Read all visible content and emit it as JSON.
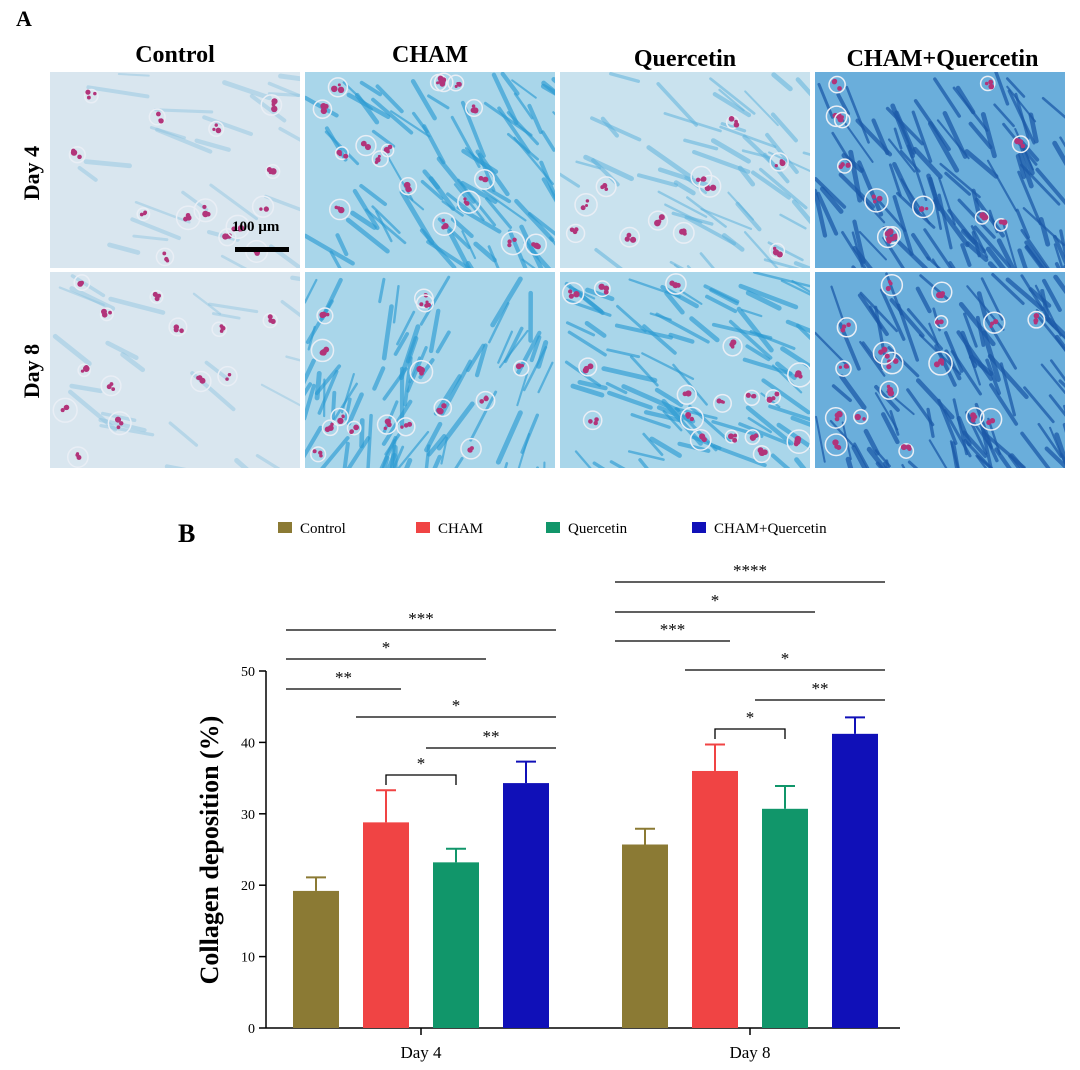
{
  "panel_a": {
    "label": "A",
    "columns": [
      "Control",
      "CHAM",
      "Quercetin",
      "CHAM+Quercetin"
    ],
    "rows": [
      "Day 4",
      "Day 8"
    ],
    "scale_bar_label": "100 µm",
    "tiles": [
      {
        "group": "Control",
        "day": "Day 4",
        "staining_level": "light"
      },
      {
        "group": "CHAM",
        "day": "Day 4",
        "staining_level": "medium"
      },
      {
        "group": "Quercetin",
        "day": "Day 4",
        "staining_level": "light-medium"
      },
      {
        "group": "CHAM+Quercetin",
        "day": "Day 4",
        "staining_level": "dark"
      },
      {
        "group": "Control",
        "day": "Day 8",
        "staining_level": "light"
      },
      {
        "group": "CHAM",
        "day": "Day 8",
        "staining_level": "medium"
      },
      {
        "group": "Quercetin",
        "day": "Day 8",
        "staining_level": "medium"
      },
      {
        "group": "CHAM+Quercetin",
        "day": "Day 8",
        "staining_level": "dark"
      }
    ],
    "stain_colors": {
      "collagen": "#4aa8d8",
      "nuclei": "#b2347a",
      "background": "#dbe9f2"
    }
  },
  "chart_data": {
    "panel_label": "B",
    "type": "bar",
    "categories": [
      "Day 4",
      "Day 8"
    ],
    "series": [
      {
        "name": "Control",
        "color": "#8b7a34",
        "values": [
          19.2,
          25.7
        ],
        "errors": [
          1.9,
          2.2
        ]
      },
      {
        "name": "CHAM",
        "color": "#f04444",
        "values": [
          28.8,
          36.0
        ],
        "errors": [
          4.5,
          3.7
        ]
      },
      {
        "name": "Quercetin",
        "color": "#11966a",
        "values": [
          23.2,
          30.7
        ],
        "errors": [
          1.9,
          3.2
        ]
      },
      {
        "name": "CHAM+Quercetin",
        "color": "#1010b8",
        "values": [
          34.3,
          41.2
        ],
        "errors": [
          3.0,
          2.3
        ]
      }
    ],
    "ylabel": "Collagen deposition (%)",
    "ylim": [
      0,
      50
    ],
    "yticks": [
      0,
      10,
      20,
      30,
      40,
      50
    ],
    "legend_position": "top",
    "grid": false,
    "significance": [
      {
        "category": "Day 4",
        "from": "Control",
        "to": "CHAM",
        "label": "**"
      },
      {
        "category": "Day 4",
        "from": "Control",
        "to": "Quercetin",
        "label": "*"
      },
      {
        "category": "Day 4",
        "from": "Control",
        "to": "CHAM+Quercetin",
        "label": "***"
      },
      {
        "category": "Day 4",
        "from": "CHAM",
        "to": "Quercetin",
        "label": "*"
      },
      {
        "category": "Day 4",
        "from": "CHAM",
        "to": "CHAM+Quercetin",
        "label": "*"
      },
      {
        "category": "Day 4",
        "from": "Quercetin",
        "to": "CHAM+Quercetin",
        "label": "**"
      },
      {
        "category": "Day 8",
        "from": "Control",
        "to": "CHAM",
        "label": "***"
      },
      {
        "category": "Day 8",
        "from": "Control",
        "to": "Quercetin",
        "label": "*"
      },
      {
        "category": "Day 8",
        "from": "Control",
        "to": "CHAM+Quercetin",
        "label": "****"
      },
      {
        "category": "Day 8",
        "from": "CHAM",
        "to": "Quercetin",
        "label": "*"
      },
      {
        "category": "Day 8",
        "from": "CHAM",
        "to": "CHAM+Quercetin",
        "label": "*"
      },
      {
        "category": "Day 8",
        "from": "Quercetin",
        "to": "CHAM+Quercetin",
        "label": "**"
      }
    ]
  }
}
